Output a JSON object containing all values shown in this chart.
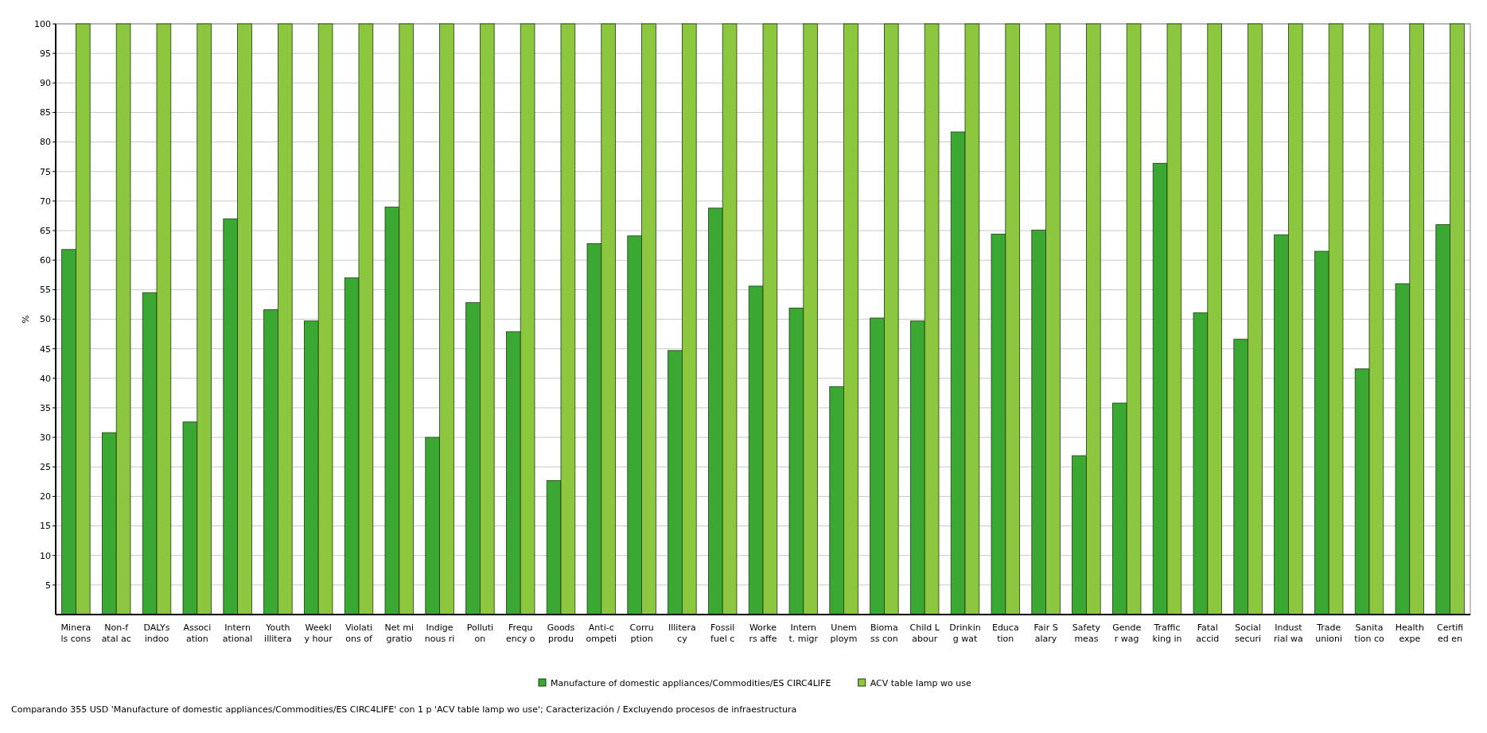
{
  "chart_data": {
    "type": "bar",
    "ylabel": "%",
    "categories": [
      "Minera\nls cons",
      "Non-f\natal ac",
      "DALYs\nindoo",
      "Associ\nation",
      "Intern\national",
      "Youth\nillitera",
      "Weekl\ny hour",
      "Violati\nons of",
      "Net mi\ngratio",
      "Indige\nnous ri",
      "Polluti\non",
      "Frequ\nency o",
      "Goods\nprodu",
      "Anti-c\nompeti",
      "Corru\nption",
      "Illitera\ncy",
      "Fossil\nfuel c",
      "Worke\nrs affe",
      "Intern\nt. migr",
      "Unem\nploym",
      "Bioma\nss con",
      "Child L\nabour",
      "Drinkin\ng wat",
      "Educa\ntion",
      "Fair S\nalary",
      "Safety\nmeas",
      "Gende\nr wag",
      "Traffic\nking in",
      "Fatal\naccid",
      "Social\nsecuri",
      "Indust\nrial wa",
      "Trade\nunioni",
      "Sanita\ntion co",
      "Health\nexpe",
      "Certifi\ned en"
    ],
    "series": [
      {
        "name": "Manufacture of domestic appliances/Commodities/ES CIRC4LIFE",
        "color": "#3aa832",
        "values": [
          61.8,
          30.8,
          54.5,
          32.6,
          67,
          51.6,
          49.7,
          57,
          69,
          30,
          52.8,
          47.9,
          22.7,
          62.8,
          64.1,
          44.7,
          68.8,
          55.6,
          51.9,
          38.6,
          50.2,
          49.7,
          81.7,
          64.4,
          65.1,
          26.9,
          35.8,
          76.4,
          51.1,
          46.6,
          64.3,
          61.5,
          41.6,
          56,
          66
        ]
      },
      {
        "name": "ACV table lamp wo use",
        "color": "#8dc63f",
        "values": [
          100,
          100,
          100,
          100,
          100,
          100,
          100,
          100,
          100,
          100,
          100,
          100,
          100,
          100,
          100,
          100,
          100,
          100,
          100,
          100,
          100,
          100,
          100,
          100,
          100,
          100,
          100,
          100,
          100,
          100,
          100,
          100,
          100,
          100,
          100
        ]
      }
    ],
    "ylim": [
      0,
      100
    ],
    "yticks": [
      5,
      10,
      15,
      20,
      25,
      30,
      35,
      40,
      45,
      50,
      55,
      60,
      65,
      70,
      75,
      80,
      85,
      90,
      95,
      100
    ],
    "grid": "y",
    "legend": "bottom",
    "annotations": [
      "Comparando 355 USD 'Manufacture of domestic appliances/Commodities/ES CIRC4LIFE' con 1 p 'ACV table lamp wo use';  Caracterización / Excluyendo procesos de infraestructura"
    ]
  }
}
